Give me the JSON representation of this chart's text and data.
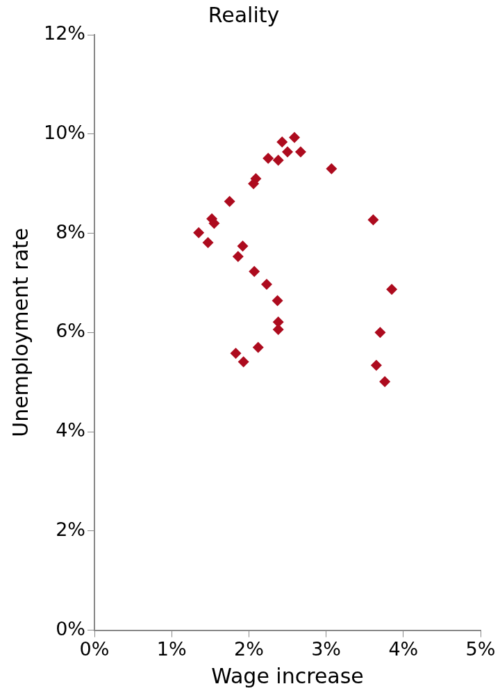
{
  "chart_data": {
    "type": "scatter",
    "title": "Reality",
    "xlabel": "Wage increase",
    "ylabel": "Unemployment rate",
    "x": [
      2.59,
      2.43,
      2.5,
      2.67,
      2.25,
      2.38,
      3.07,
      2.09,
      2.06,
      1.75,
      1.52,
      1.55,
      3.61,
      1.35,
      1.47,
      1.92,
      1.86,
      2.07,
      2.23,
      3.85,
      2.37,
      2.38,
      2.38,
      3.7,
      2.12,
      1.83,
      1.93,
      3.65,
      3.76
    ],
    "values": [
      9.93,
      9.84,
      9.64,
      9.64,
      9.51,
      9.47,
      9.3,
      9.1,
      9.0,
      8.64,
      8.29,
      8.2,
      8.27,
      8.01,
      7.81,
      7.74,
      7.53,
      7.23,
      6.97,
      6.87,
      6.64,
      6.21,
      6.06,
      6.0,
      5.7,
      5.58,
      5.41,
      5.34,
      5.01
    ],
    "color": "#ad0b1e",
    "marker": "diamond",
    "grid": false,
    "legend": false,
    "xlim": [
      0,
      5
    ],
    "ylim": [
      0,
      12
    ],
    "xticks": [
      {
        "value": 0,
        "label": "0%"
      },
      {
        "value": 1,
        "label": "1%"
      },
      {
        "value": 2,
        "label": "2%"
      },
      {
        "value": 3,
        "label": "3%"
      },
      {
        "value": 4,
        "label": "4%"
      },
      {
        "value": 5,
        "label": "5%"
      }
    ],
    "yticks": [
      {
        "value": 0,
        "label": "0%"
      },
      {
        "value": 2,
        "label": "2%"
      },
      {
        "value": 4,
        "label": "4%"
      },
      {
        "value": 6,
        "label": "6%"
      },
      {
        "value": 8,
        "label": "8%"
      },
      {
        "value": 10,
        "label": "10%"
      },
      {
        "value": 12,
        "label": "12%"
      }
    ]
  }
}
